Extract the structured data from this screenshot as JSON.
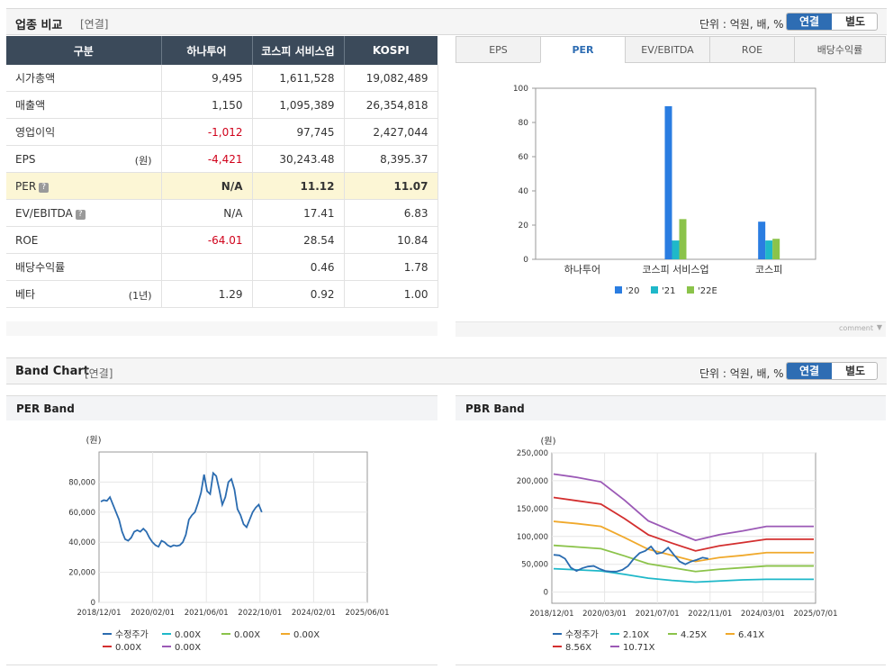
{
  "section1": {
    "title": "업종 비교",
    "tag": "[연결]",
    "unit": "단위 : 억원, 배, %",
    "toggle_on": "연결",
    "toggle_off": "별도"
  },
  "table": {
    "headers": [
      "구분",
      "하나투어",
      "코스피 서비스업",
      "KOSPI"
    ],
    "rows": [
      {
        "label": "시가총액",
        "note": "",
        "values": [
          "9,495",
          "1,611,528",
          "19,082,489"
        ]
      },
      {
        "label": "매출액",
        "note": "",
        "values": [
          "1,150",
          "1,095,389",
          "26,354,818"
        ]
      },
      {
        "label": "영업이익",
        "note": "",
        "values": [
          "-1,012",
          "97,745",
          "2,427,044"
        ]
      },
      {
        "label": "EPS",
        "note": "(원)",
        "values": [
          "-4,421",
          "30,243.48",
          "8,395.37"
        ]
      },
      {
        "label": "PER",
        "note": "",
        "values": [
          "N/A",
          "11.12",
          "11.07"
        ]
      },
      {
        "label": "EV/EBITDA",
        "note": "",
        "values": [
          "N/A",
          "17.41",
          "6.83"
        ]
      },
      {
        "label": "ROE",
        "note": "",
        "values": [
          "-64.01",
          "28.54",
          "10.84"
        ]
      },
      {
        "label": "배당수익률",
        "note": "",
        "values": [
          "",
          "0.46",
          "1.78"
        ]
      },
      {
        "label": "베타",
        "note": "(1년)",
        "values": [
          "1.29",
          "0.92",
          "1.00"
        ]
      }
    ]
  },
  "tabs": [
    "EPS",
    "PER",
    "EV/EBITDA",
    "ROE",
    "배당수익률"
  ],
  "active_tab": "PER",
  "comment_label": "comment",
  "colors": {
    "series20": "#2a7de1",
    "series21": "#1fb8c9",
    "series22": "#8bc34a",
    "accent": "#2e6db3",
    "negative": "#d0021b"
  },
  "chart_data": [
    {
      "type": "bar",
      "categories": [
        "하나투어",
        "코스피 서비스업",
        "코스피"
      ],
      "series": [
        {
          "name": "'20",
          "values": [
            null,
            89.5,
            22
          ]
        },
        {
          "name": "'21",
          "values": [
            null,
            11,
            11
          ]
        },
        {
          "name": "'22E",
          "values": [
            null,
            23.5,
            12
          ]
        }
      ],
      "ylim": [
        0,
        100
      ],
      "yticks": [
        "0",
        "20",
        "40",
        "60",
        "80",
        "100"
      ],
      "grid": false,
      "legend": "bottom"
    },
    {
      "type": "line",
      "title": "PER Band",
      "ylabel": "(원)",
      "xticks": [
        "2018/12/01",
        "2020/02/01",
        "2021/06/01",
        "2022/10/01",
        "2024/02/01",
        "2025/06/01"
      ],
      "yticks": [
        "0",
        "20,000",
        "40,000",
        "60,000",
        "80,000"
      ],
      "ylim": [
        0,
        100000
      ],
      "series": [
        {
          "name": "수정주가",
          "color": "#2b6cb0",
          "values": [
            67000,
            68000,
            67500,
            70000,
            65000,
            60000,
            55000,
            47000,
            42000,
            41000,
            43000,
            47000,
            48000,
            47000,
            49000,
            47000,
            43000,
            40000,
            38000,
            37000,
            41000,
            40000,
            38000,
            37000,
            38000,
            37500,
            38000,
            40000,
            45000,
            55000,
            58000,
            60000,
            66000,
            73000,
            85000,
            74000,
            72000,
            86000,
            84000,
            75000,
            65000,
            70000,
            80000,
            82000,
            75000,
            62000,
            58000,
            52000,
            50000,
            55000,
            60000,
            63000,
            65000,
            60000
          ]
        }
      ],
      "legend": [
        "수정주가",
        "0.00X",
        "0.00X",
        "0.00X",
        "0.00X",
        "0.00X"
      ],
      "legend_colors": [
        "#2b6cb0",
        "#1fb8c9",
        "#8bc34a",
        "#f0a92c",
        "#d32f2f",
        "#9b59b6"
      ],
      "legend_position": "bottom"
    },
    {
      "type": "line",
      "title": "PBR Band",
      "ylabel": "(원)",
      "xticks": [
        "2018/12/01",
        "2020/03/01",
        "2021/07/01",
        "2022/11/01",
        "2024/03/01",
        "2025/07/01"
      ],
      "yticks": [
        "0",
        "50,000",
        "100,000",
        "150,000",
        "200,000",
        "250,000"
      ],
      "ylim": [
        -20000,
        250000
      ],
      "series": [
        {
          "name": "10.71X",
          "color": "#9b59b6",
          "values": [
            212000,
            206000,
            198000,
            165000,
            128000,
            110000,
            93000,
            103000,
            110000,
            118000,
            118000,
            118000
          ]
        },
        {
          "name": "8.56X",
          "color": "#d32f2f",
          "values": [
            170000,
            164000,
            158000,
            132000,
            103000,
            88000,
            74000,
            83000,
            89000,
            95000,
            95000,
            95000
          ]
        },
        {
          "name": "6.41X",
          "color": "#f0a92c",
          "values": [
            127000,
            123000,
            118000,
            98000,
            77000,
            66000,
            55000,
            62000,
            66000,
            71000,
            71000,
            71000
          ]
        },
        {
          "name": "4.25X",
          "color": "#8bc34a",
          "values": [
            84000,
            81000,
            78000,
            65000,
            51000,
            44000,
            37000,
            41000,
            44000,
            47000,
            47000,
            47000
          ]
        },
        {
          "name": "2.10X",
          "color": "#1fb8c9",
          "values": [
            42000,
            40000,
            38000,
            32000,
            25000,
            21000,
            18000,
            20000,
            22000,
            23000,
            23000,
            23000
          ]
        },
        {
          "name": "수정주가",
          "color": "#2b6cb0",
          "values": [
            67000,
            66000,
            60000,
            44000,
            38000,
            43000,
            46000,
            47000,
            42000,
            38000,
            37000,
            37000,
            40000,
            47000,
            60000,
            70000,
            74000,
            82000,
            69000,
            71000,
            80000,
            67000,
            55000,
            50000,
            55000,
            58000,
            62000,
            60000
          ]
        }
      ],
      "legend": [
        "수정주가",
        "2.10X",
        "4.25X",
        "6.41X",
        "8.56X",
        "10.71X"
      ],
      "legend_colors": [
        "#2b6cb0",
        "#1fb8c9",
        "#8bc34a",
        "#f0a92c",
        "#d32f2f",
        "#9b59b6"
      ],
      "legend_position": "bottom"
    }
  ],
  "section2": {
    "title": "Band Chart",
    "tag": "[연결]",
    "unit": "단위 : 억원, 배, %",
    "toggle_on": "연결",
    "toggle_off": "별도"
  },
  "panels": {
    "per_title": "PER Band",
    "pbr_title": "PBR Band"
  }
}
